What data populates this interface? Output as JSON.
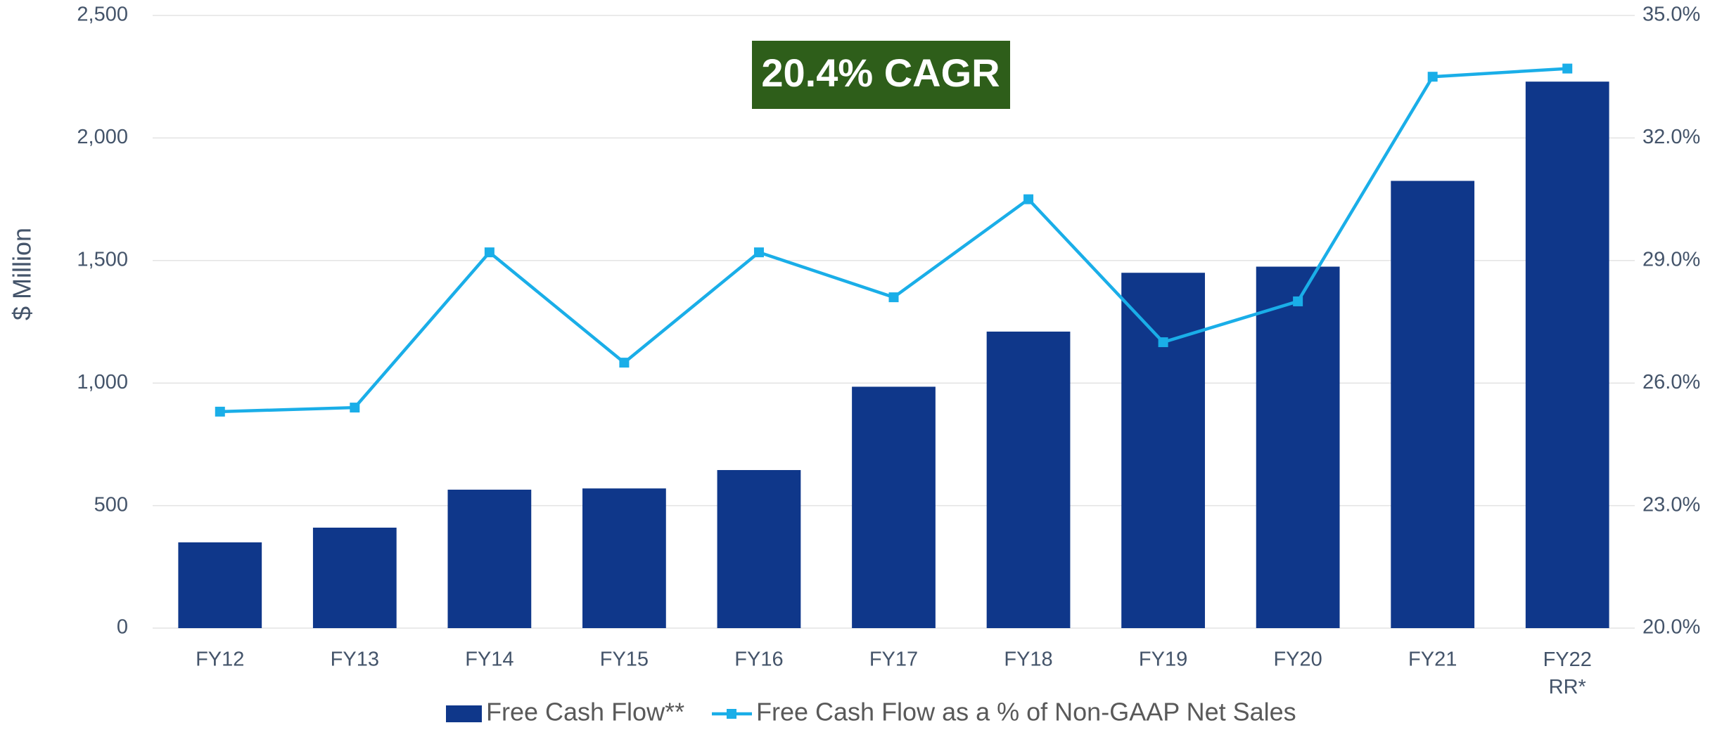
{
  "chart_data": {
    "type": "bar_line",
    "y_axis_label": "$ Million",
    "annotation": "20.4% CAGR",
    "categories": [
      "FY12",
      "FY13",
      "FY14",
      "FY15",
      "FY16",
      "FY17",
      "FY18",
      "FY19",
      "FY20",
      "FY21",
      "FY22\nRR*"
    ],
    "series": [
      {
        "name": "Free Cash Flow**",
        "type": "bar",
        "color": "#0f378a",
        "values": [
          350,
          410,
          565,
          570,
          645,
          985,
          1210,
          1450,
          1475,
          1825,
          2230
        ]
      },
      {
        "name": "Free Cash Flow as a % of Non-GAAP Net Sales",
        "type": "line",
        "axis": "y2",
        "color": "#1aaee8",
        "values": [
          25.3,
          25.4,
          29.2,
          26.5,
          29.2,
          28.1,
          30.5,
          27.0,
          28.0,
          33.5,
          33.7
        ]
      }
    ],
    "ylim": [
      0,
      2500
    ],
    "yticks": [
      0,
      500,
      {
        "value": 1000,
        "label": "1,000"
      },
      {
        "value": 1500,
        "label": "1,500"
      },
      {
        "value": 2000,
        "label": "2,000"
      },
      {
        "value": 2500,
        "label": "2,500"
      }
    ],
    "y2lim": [
      20,
      35
    ],
    "y2ticks": [
      {
        "value": 20,
        "label": "20.0%"
      },
      {
        "value": 23,
        "label": "23.0%"
      },
      {
        "value": 26,
        "label": "26.0%"
      },
      {
        "value": 29,
        "label": "29.0%"
      },
      {
        "value": 32,
        "label": "32.0%"
      },
      {
        "value": 35,
        "label": "35.0%"
      }
    ],
    "grid": true,
    "legend": "bottom"
  }
}
